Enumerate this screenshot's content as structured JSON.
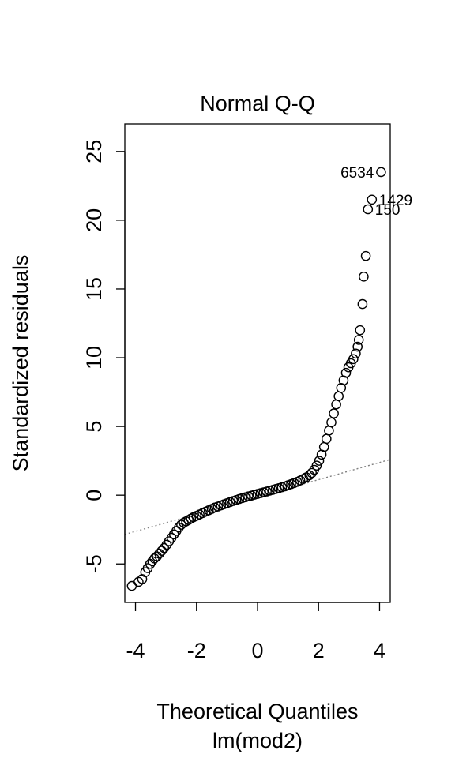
{
  "chart_data": {
    "type": "scatter",
    "title": "Normal Q-Q",
    "xlabel": "Theoretical Quantiles",
    "sublabel": "lm(mod2)",
    "ylabel": "Standardized residuals",
    "xlim": [
      -4.35,
      4.35
    ],
    "ylim": [
      -7.8,
      27.0
    ],
    "x_ticks": [
      {
        "value": -4,
        "label": "-4"
      },
      {
        "value": -2,
        "label": "-2"
      },
      {
        "value": 0,
        "label": "0"
      },
      {
        "value": 2,
        "label": "2"
      },
      {
        "value": 4,
        "label": "4"
      }
    ],
    "y_ticks": [
      {
        "value": -5,
        "label": "-5"
      },
      {
        "value": 0,
        "label": "0"
      },
      {
        "value": 5,
        "label": "5"
      },
      {
        "value": 10,
        "label": "10"
      },
      {
        "value": 15,
        "label": "15"
      },
      {
        "value": 20,
        "label": "20"
      },
      {
        "value": 25,
        "label": "25"
      }
    ],
    "grid": false,
    "reference_line": {
      "style": "dotted",
      "color": "#808080",
      "x": [
        -4.35,
        4.35
      ],
      "y": [
        -2.85,
        2.6
      ]
    },
    "marker_color": "#000000",
    "points": [
      {
        "x": -4.12,
        "y": -6.6
      },
      {
        "x": -3.9,
        "y": -6.3
      },
      {
        "x": -3.78,
        "y": -6.1
      },
      {
        "x": -3.68,
        "y": -5.6
      },
      {
        "x": -3.6,
        "y": -5.3
      },
      {
        "x": -3.52,
        "y": -5.0
      },
      {
        "x": -3.45,
        "y": -4.8
      },
      {
        "x": -3.38,
        "y": -4.6
      },
      {
        "x": -3.3,
        "y": -4.45
      },
      {
        "x": -3.22,
        "y": -4.25
      },
      {
        "x": -3.14,
        "y": -4.05
      },
      {
        "x": -3.06,
        "y": -3.85
      },
      {
        "x": -2.98,
        "y": -3.6
      },
      {
        "x": -2.9,
        "y": -3.35
      },
      {
        "x": -2.82,
        "y": -3.1
      },
      {
        "x": -2.74,
        "y": -2.85
      },
      {
        "x": -2.66,
        "y": -2.6
      },
      {
        "x": -2.58,
        "y": -2.35
      },
      {
        "x": -2.5,
        "y": -2.15
      },
      {
        "x": -2.42,
        "y": -2.0
      },
      {
        "x": -2.34,
        "y": -1.9
      },
      {
        "x": -2.26,
        "y": -1.8
      },
      {
        "x": -2.18,
        "y": -1.7
      },
      {
        "x": -2.1,
        "y": -1.6
      },
      {
        "x": -2.0,
        "y": -1.5
      },
      {
        "x": -1.9,
        "y": -1.4
      },
      {
        "x": -1.8,
        "y": -1.3
      },
      {
        "x": -1.7,
        "y": -1.2
      },
      {
        "x": -1.6,
        "y": -1.1
      },
      {
        "x": -1.5,
        "y": -1.0
      },
      {
        "x": -1.4,
        "y": -0.9
      },
      {
        "x": -1.3,
        "y": -0.82
      },
      {
        "x": -1.2,
        "y": -0.74
      },
      {
        "x": -1.1,
        "y": -0.66
      },
      {
        "x": -1.0,
        "y": -0.58
      },
      {
        "x": -0.9,
        "y": -0.5
      },
      {
        "x": -0.8,
        "y": -0.42
      },
      {
        "x": -0.7,
        "y": -0.35
      },
      {
        "x": -0.6,
        "y": -0.28
      },
      {
        "x": -0.5,
        "y": -0.21
      },
      {
        "x": -0.4,
        "y": -0.15
      },
      {
        "x": -0.3,
        "y": -0.09
      },
      {
        "x": -0.2,
        "y": -0.03
      },
      {
        "x": -0.1,
        "y": 0.03
      },
      {
        "x": 0.0,
        "y": 0.09
      },
      {
        "x": 0.1,
        "y": 0.15
      },
      {
        "x": 0.2,
        "y": 0.21
      },
      {
        "x": 0.3,
        "y": 0.27
      },
      {
        "x": 0.4,
        "y": 0.33
      },
      {
        "x": 0.5,
        "y": 0.39
      },
      {
        "x": 0.6,
        "y": 0.45
      },
      {
        "x": 0.7,
        "y": 0.51
      },
      {
        "x": 0.8,
        "y": 0.58
      },
      {
        "x": 0.9,
        "y": 0.65
      },
      {
        "x": 1.0,
        "y": 0.72
      },
      {
        "x": 1.1,
        "y": 0.8
      },
      {
        "x": 1.2,
        "y": 0.88
      },
      {
        "x": 1.3,
        "y": 0.97
      },
      {
        "x": 1.4,
        "y": 1.07
      },
      {
        "x": 1.5,
        "y": 1.18
      },
      {
        "x": 1.6,
        "y": 1.3
      },
      {
        "x": 1.7,
        "y": 1.45
      },
      {
        "x": 1.78,
        "y": 1.62
      },
      {
        "x": 1.86,
        "y": 1.85
      },
      {
        "x": 1.94,
        "y": 2.15
      },
      {
        "x": 2.02,
        "y": 2.5
      },
      {
        "x": 2.1,
        "y": 2.95
      },
      {
        "x": 2.18,
        "y": 3.5
      },
      {
        "x": 2.26,
        "y": 4.1
      },
      {
        "x": 2.34,
        "y": 4.7
      },
      {
        "x": 2.42,
        "y": 5.3
      },
      {
        "x": 2.5,
        "y": 5.95
      },
      {
        "x": 2.58,
        "y": 6.6
      },
      {
        "x": 2.66,
        "y": 7.2
      },
      {
        "x": 2.74,
        "y": 7.8
      },
      {
        "x": 2.82,
        "y": 8.35
      },
      {
        "x": 2.9,
        "y": 8.9
      },
      {
        "x": 2.98,
        "y": 9.3
      },
      {
        "x": 3.06,
        "y": 9.6
      },
      {
        "x": 3.14,
        "y": 9.9
      },
      {
        "x": 3.22,
        "y": 10.3
      },
      {
        "x": 3.28,
        "y": 10.8
      },
      {
        "x": 3.32,
        "y": 11.3
      },
      {
        "x": 3.36,
        "y": 12.0
      },
      {
        "x": 3.44,
        "y": 13.9
      },
      {
        "x": 3.48,
        "y": 15.9
      },
      {
        "x": 3.55,
        "y": 17.4
      },
      {
        "x": 3.62,
        "y": 20.8
      },
      {
        "x": 3.75,
        "y": 21.5
      },
      {
        "x": 4.05,
        "y": 23.5
      }
    ],
    "annotations": [
      {
        "x": 4.05,
        "y": 23.5,
        "label": "6534",
        "side": "left"
      },
      {
        "x": 3.75,
        "y": 21.5,
        "label": "1429",
        "side": "right"
      },
      {
        "x": 3.62,
        "y": 20.8,
        "label": "150",
        "side": "right"
      }
    ]
  }
}
